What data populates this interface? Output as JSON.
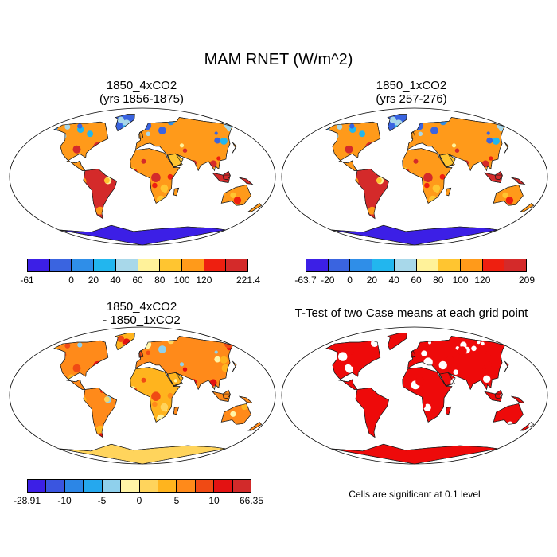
{
  "figure_title": "MAM RNET (W/m^2)",
  "panels": {
    "top_left": {
      "title_line1": "1850_4xCO2",
      "title_line2": "(yrs 1856-1875)",
      "colorbar_labels": [
        "-61",
        "0",
        "20",
        "40",
        "60",
        "80",
        "100",
        "120",
        "221.4"
      ]
    },
    "top_right": {
      "title_line1": "1850_1xCO2",
      "title_line2": "(yrs 257-276)",
      "colorbar_labels": [
        "-63.7",
        "-20",
        "0",
        "20",
        "40",
        "60",
        "80",
        "100",
        "120",
        "209"
      ]
    },
    "bottom_left": {
      "title_line1": "1850_4xCO2",
      "title_line2": "- 1850_1xCO2",
      "colorbar_labels": [
        "-28.91",
        "-10",
        "-5",
        "0",
        "5",
        "10",
        "66.35"
      ]
    },
    "bottom_right": {
      "title": "T-Test of two Case means at each grid point",
      "note": "Cells are significant at 0.1 level"
    }
  },
  "colors": {
    "rnet_scale": [
      "#3c1fe6",
      "#3a64e0",
      "#2f8ee8",
      "#22b6ee",
      "#a8d8ea",
      "#fff29a",
      "#ffc530",
      "#ff9a1a",
      "#ee1f10",
      "#d42a2a"
    ],
    "diff_scale": [
      "#3c1fe6",
      "#3a55e0",
      "#2c86e6",
      "#25a8ee",
      "#8fd0ec",
      "#fff4a6",
      "#ffd45c",
      "#ffb41e",
      "#ff8a1a",
      "#f04a14",
      "#e31212",
      "#d22a2a"
    ],
    "significant": "#ee0a0a"
  }
}
